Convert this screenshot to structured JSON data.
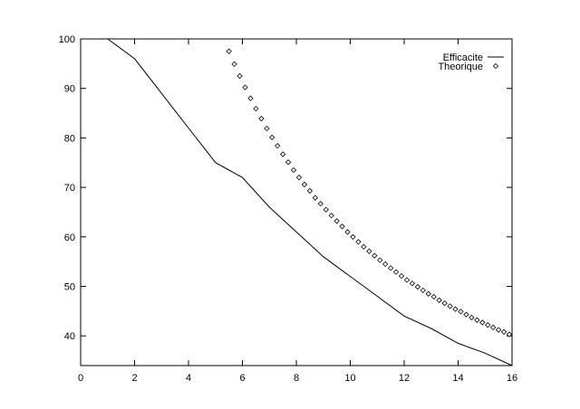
{
  "chart_data": {
    "type": "line",
    "title": "",
    "xlabel": "",
    "ylabel": "",
    "xlim": [
      0,
      16
    ],
    "ylim": [
      34,
      100
    ],
    "x_ticks": [
      0,
      2,
      4,
      6,
      8,
      10,
      12,
      14,
      16
    ],
    "y_ticks": [
      40,
      50,
      60,
      70,
      80,
      90,
      100
    ],
    "grid": false,
    "legend_position": "top-right",
    "series": [
      {
        "name": "Efficacite",
        "style": "line",
        "color": "#000000",
        "x": [
          1,
          2,
          3,
          4,
          5,
          6,
          7,
          8,
          9,
          10,
          11,
          12,
          13,
          14,
          15,
          16
        ],
        "y": [
          100,
          96,
          89,
          82,
          75,
          72,
          66,
          61,
          56,
          52,
          48,
          44,
          41.5,
          38.5,
          36.5,
          34
        ]
      },
      {
        "name": "Theorique",
        "style": "markers",
        "marker": "diamond",
        "color": "#000000",
        "x": [
          5.5,
          5.7,
          5.9,
          6.1,
          6.3,
          6.5,
          6.7,
          6.9,
          7.1,
          7.3,
          7.5,
          7.7,
          7.9,
          8.1,
          8.3,
          8.5,
          8.7,
          8.9,
          9.1,
          9.3,
          9.5,
          9.7,
          9.9,
          10.1,
          10.3,
          10.5,
          10.7,
          10.9,
          11.1,
          11.3,
          11.5,
          11.7,
          11.9,
          12.1,
          12.3,
          12.5,
          12.7,
          12.9,
          13.1,
          13.3,
          13.5,
          13.7,
          13.9,
          14.1,
          14.3,
          14.5,
          14.7,
          14.9,
          15.1,
          15.3,
          15.5,
          15.7,
          15.9
        ],
        "y": [
          97.5,
          94.9,
          92.5,
          90.2,
          88.0,
          85.9,
          83.9,
          81.9,
          80.1,
          78.4,
          76.7,
          75.1,
          73.5,
          72.0,
          70.6,
          69.3,
          67.9,
          66.7,
          65.5,
          64.3,
          63.2,
          62.1,
          61.0,
          60.0,
          59.0,
          58.0,
          57.1,
          56.2,
          55.3,
          54.5,
          53.7,
          52.9,
          52.1,
          51.3,
          50.6,
          49.9,
          49.2,
          48.5,
          47.9,
          47.2,
          46.6,
          46.0,
          45.4,
          44.9,
          44.3,
          43.7,
          43.2,
          42.7,
          42.2,
          41.7,
          41.2,
          40.8,
          40.3
        ]
      }
    ]
  }
}
